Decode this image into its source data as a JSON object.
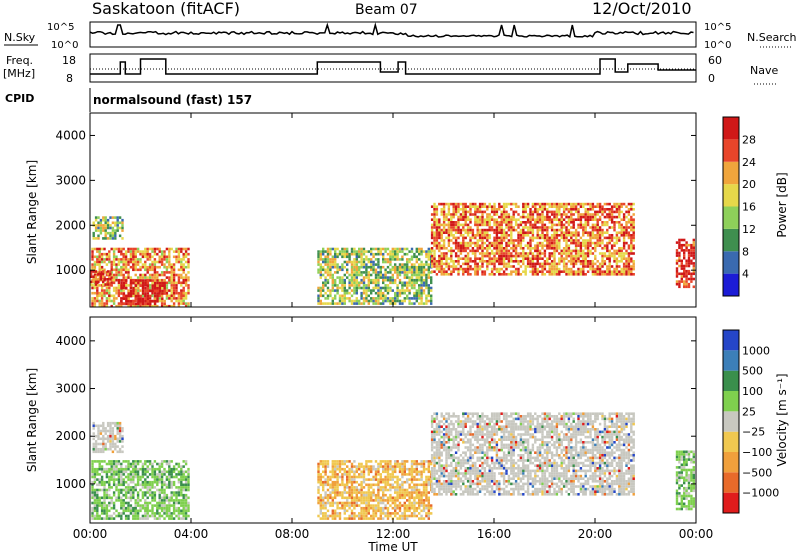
{
  "header": {
    "station": "Saskatoon (fitACF)",
    "beam": "Beam 07",
    "date": "12/Oct/2010"
  },
  "panels": {
    "noise": {
      "left_label": "N.Sky",
      "right_label": "N.Search",
      "left_ticks": [
        "10^5",
        "10^0"
      ],
      "right_ticks": [
        "10^5",
        "10^0"
      ]
    },
    "freq": {
      "left_label_1": "Freq.",
      "left_label_2": "[MHz]",
      "left_ticks": [
        "18",
        "8"
      ],
      "right_label": "Nave",
      "right_ticks": [
        "60",
        "0"
      ]
    },
    "cpid": {
      "label": "CPID",
      "program": "normalsound (fast) 157"
    }
  },
  "x_axis": {
    "label": "Time UT",
    "ticks": [
      "00:00",
      "04:00",
      "08:00",
      "12:00",
      "16:00",
      "20:00",
      "00:00"
    ]
  },
  "y_axis": {
    "label": "Slant Range [km]",
    "ticks": [
      "1000",
      "2000",
      "3000",
      "4000"
    ]
  },
  "colorbars": {
    "power": {
      "label": "Power [dB]",
      "ticks": [
        "4",
        "8",
        "12",
        "16",
        "20",
        "24",
        "28"
      ],
      "colors": [
        "#1c1cd6",
        "#3a6ab0",
        "#3f8f4f",
        "#8ed05a",
        "#e6d84a",
        "#f0a53c",
        "#e8452a",
        "#d01818"
      ]
    },
    "velocity": {
      "label": "Velocity [m s⁻¹]",
      "ticks": [
        "1000",
        "500",
        "100",
        "25",
        "−25",
        "−100",
        "−500",
        "−1000"
      ],
      "colors": [
        "#2546c8",
        "#3c7fb8",
        "#3a8f4c",
        "#7fd04e",
        "#c8c8c0",
        "#f0c850",
        "#f0a03c",
        "#e86a2a",
        "#e01c1c"
      ]
    }
  },
  "chart_data": [
    {
      "type": "heatmap",
      "title": "Power",
      "xlabel": "Time UT",
      "ylabel": "Slant Range [km]",
      "xlim": [
        "00:00",
        "24:00"
      ],
      "ylim": [
        180,
        4500
      ],
      "colorbar_label": "Power [dB]",
      "colorbar_range": [
        0,
        30
      ],
      "features": [
        {
          "t0": 0.05,
          "t1": 3.9,
          "r0": 200,
          "r1": 1500,
          "level": 0.7
        },
        {
          "t0": 0.1,
          "t1": 1.3,
          "r0": 1700,
          "r1": 2200,
          "level": 0.45
        },
        {
          "t0": 1.2,
          "t1": 3.0,
          "r0": 250,
          "r1": 800,
          "level": 0.95
        },
        {
          "t0": 0.0,
          "t1": 0.8,
          "r0": 700,
          "r1": 1000,
          "level": 0.85
        },
        {
          "t0": 9.0,
          "t1": 13.5,
          "r0": 250,
          "r1": 1500,
          "level": 0.45
        },
        {
          "t0": 13.5,
          "t1": 21.5,
          "r0": 900,
          "r1": 2500,
          "level": 0.75
        },
        {
          "t0": 23.2,
          "t1": 23.9,
          "r0": 600,
          "r1": 1700,
          "level": 0.95
        }
      ]
    },
    {
      "type": "heatmap",
      "title": "Velocity",
      "xlabel": "Time UT",
      "ylabel": "Slant Range [km]",
      "xlim": [
        "00:00",
        "24:00"
      ],
      "ylim": [
        180,
        4500
      ],
      "colorbar_label": "Velocity [m s⁻¹]",
      "colorbar_range": [
        -1000,
        1000
      ],
      "features": [
        {
          "t0": 0.05,
          "t1": 3.9,
          "r0": 250,
          "r1": 1500,
          "value": 150
        },
        {
          "t0": 0.1,
          "t1": 1.3,
          "r0": 1700,
          "r1": 2300,
          "value": 0
        },
        {
          "t0": 9.0,
          "t1": 13.5,
          "r0": 250,
          "r1": 1500,
          "value": -200
        },
        {
          "t0": 13.5,
          "t1": 21.5,
          "r0": 800,
          "r1": 2500,
          "value": 0
        },
        {
          "t0": 23.2,
          "t1": 23.9,
          "r0": 500,
          "r1": 1700,
          "value": 100
        }
      ]
    }
  ]
}
